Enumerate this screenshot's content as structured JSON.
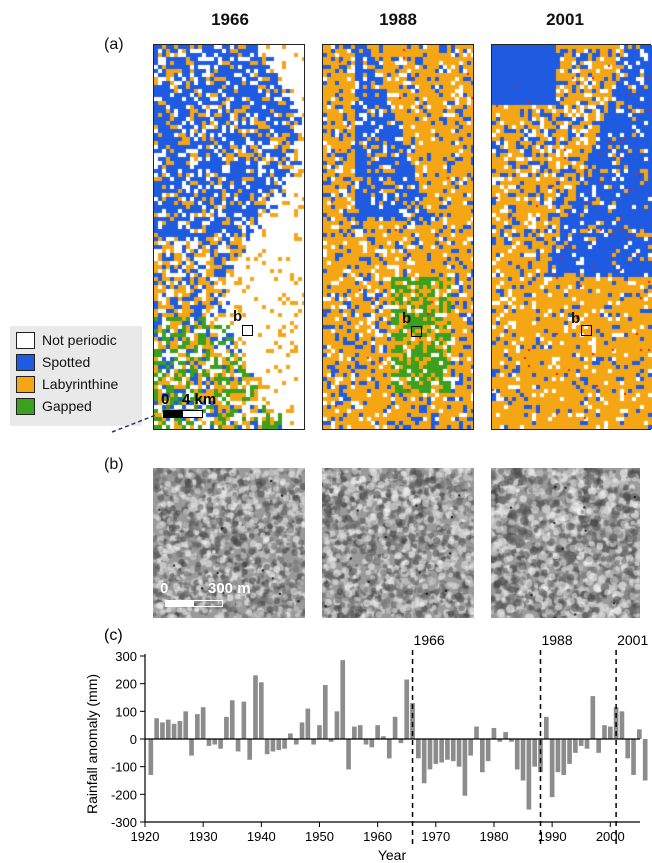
{
  "panels": {
    "a_label": "(a)",
    "b_label": "(b)",
    "c_label": "(c)"
  },
  "years": [
    "1966",
    "1988",
    "2001"
  ],
  "legend": {
    "items": [
      {
        "label": "Not periodic",
        "color": "#ffffff"
      },
      {
        "label": "Spotted",
        "color": "#1f5be0"
      },
      {
        "label": "Labyrinthine",
        "color": "#f5a615"
      },
      {
        "label": "Gapped",
        "color": "#3aa01e"
      }
    ]
  },
  "map_inset_label": "b",
  "scale_bars": {
    "map_zero": "0",
    "map_value": "4 km",
    "texture_zero": "0",
    "texture_value": "300 m"
  },
  "chart_data": {
    "type": "bar",
    "title": "",
    "xlabel": "Year",
    "ylabel": "Rainfall anomaly (mm)",
    "xlim": [
      1920,
      2007
    ],
    "ylim": [
      -300,
      300
    ],
    "xticks": [
      1920,
      1930,
      1940,
      1950,
      1960,
      1970,
      1980,
      1990,
      2000
    ],
    "yticks": [
      -300,
      -200,
      -100,
      0,
      100,
      200,
      300
    ],
    "vlines": [
      {
        "x": 1966,
        "label": "1966"
      },
      {
        "x": 1988,
        "label": "1988"
      },
      {
        "x": 2001,
        "label": "2001"
      }
    ],
    "bar_color": "#8c8c8c",
    "x": [
      1921,
      1922,
      1923,
      1924,
      1925,
      1926,
      1927,
      1928,
      1929,
      1930,
      1931,
      1932,
      1933,
      1934,
      1935,
      1936,
      1937,
      1938,
      1939,
      1940,
      1941,
      1942,
      1943,
      1944,
      1945,
      1946,
      1947,
      1948,
      1949,
      1950,
      1951,
      1952,
      1953,
      1954,
      1955,
      1956,
      1957,
      1958,
      1959,
      1960,
      1961,
      1962,
      1963,
      1964,
      1965,
      1966,
      1967,
      1968,
      1969,
      1970,
      1971,
      1972,
      1973,
      1974,
      1975,
      1976,
      1977,
      1978,
      1979,
      1980,
      1981,
      1982,
      1983,
      1984,
      1985,
      1986,
      1987,
      1988,
      1989,
      1990,
      1991,
      1992,
      1993,
      1994,
      1995,
      1996,
      1997,
      1998,
      1999,
      2000,
      2001,
      2002,
      2003,
      2004,
      2005,
      2006
    ],
    "values": [
      -130,
      75,
      60,
      70,
      55,
      65,
      100,
      -60,
      90,
      115,
      -25,
      -20,
      -35,
      80,
      140,
      -45,
      135,
      -75,
      230,
      205,
      -55,
      -45,
      -40,
      -35,
      20,
      -20,
      60,
      110,
      -20,
      50,
      195,
      -10,
      100,
      285,
      -110,
      45,
      50,
      -20,
      -30,
      50,
      10,
      -70,
      80,
      -15,
      215,
      130,
      -70,
      -160,
      -110,
      -90,
      -85,
      -75,
      -80,
      -100,
      -205,
      -60,
      45,
      -120,
      -80,
      40,
      -10,
      25,
      -10,
      -110,
      -150,
      -255,
      -100,
      -120,
      80,
      -210,
      -120,
      -130,
      -90,
      -50,
      -25,
      -35,
      155,
      -50,
      50,
      45,
      115,
      100,
      -70,
      -130,
      35,
      -150
    ]
  }
}
